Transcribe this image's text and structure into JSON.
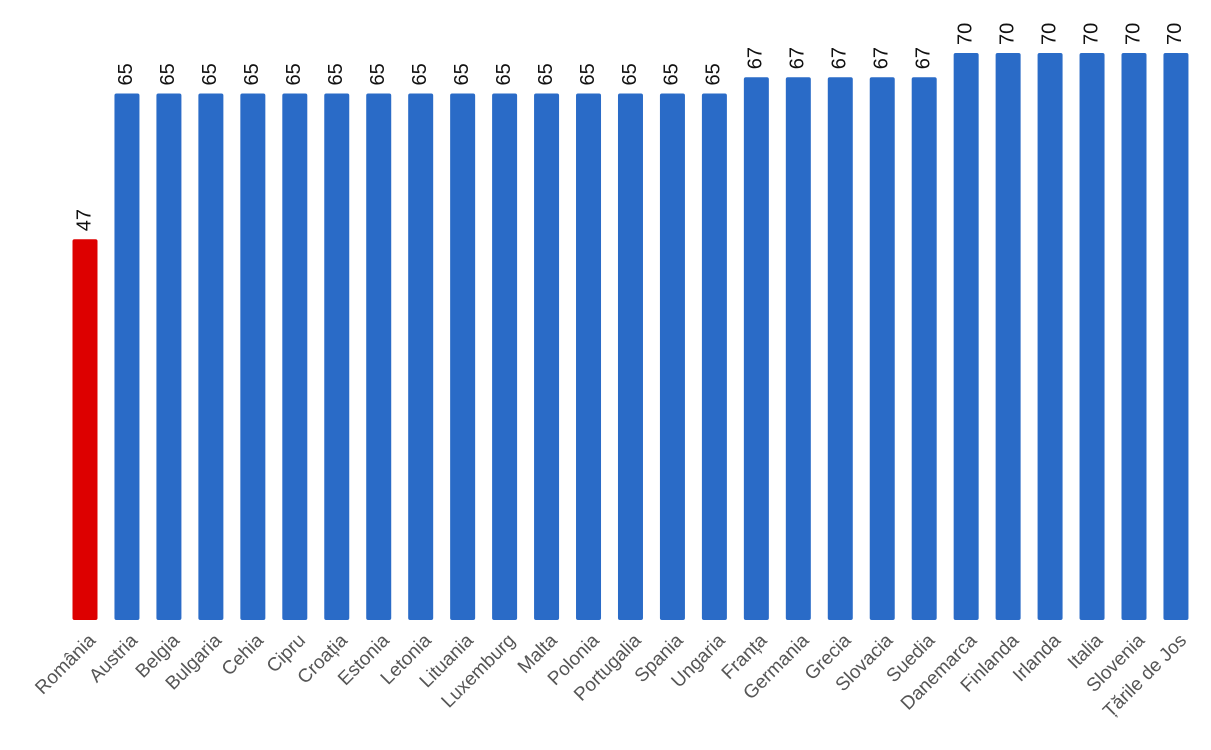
{
  "chart_data": {
    "type": "bar",
    "categories": [
      "România",
      "Austria",
      "Belgia",
      "Bulgaria",
      "Cehia",
      "Cipru",
      "Croația",
      "Estonia",
      "Letonia",
      "Lituania",
      "Luxemburg",
      "Malta",
      "Polonia",
      "Portugalia",
      "Spania",
      "Ungaria",
      "Franța",
      "Germania",
      "Grecia",
      "Slovacia",
      "Suedia",
      "Danemarca",
      "Finlanda",
      "Irlanda",
      "Italia",
      "Slovenia",
      "Țările de Jos"
    ],
    "values": [
      47,
      65,
      65,
      65,
      65,
      65,
      65,
      65,
      65,
      65,
      65,
      65,
      65,
      65,
      65,
      65,
      67,
      67,
      67,
      67,
      67,
      70,
      70,
      70,
      70,
      70,
      70
    ],
    "colors": [
      "#dd0000",
      "#2a6bc7",
      "#2a6bc7",
      "#2a6bc7",
      "#2a6bc7",
      "#2a6bc7",
      "#2a6bc7",
      "#2a6bc7",
      "#2a6bc7",
      "#2a6bc7",
      "#2a6bc7",
      "#2a6bc7",
      "#2a6bc7",
      "#2a6bc7",
      "#2a6bc7",
      "#2a6bc7",
      "#2a6bc7",
      "#2a6bc7",
      "#2a6bc7",
      "#2a6bc7",
      "#2a6bc7",
      "#2a6bc7",
      "#2a6bc7",
      "#2a6bc7",
      "#2a6bc7",
      "#2a6bc7",
      "#2a6bc7"
    ]
  }
}
